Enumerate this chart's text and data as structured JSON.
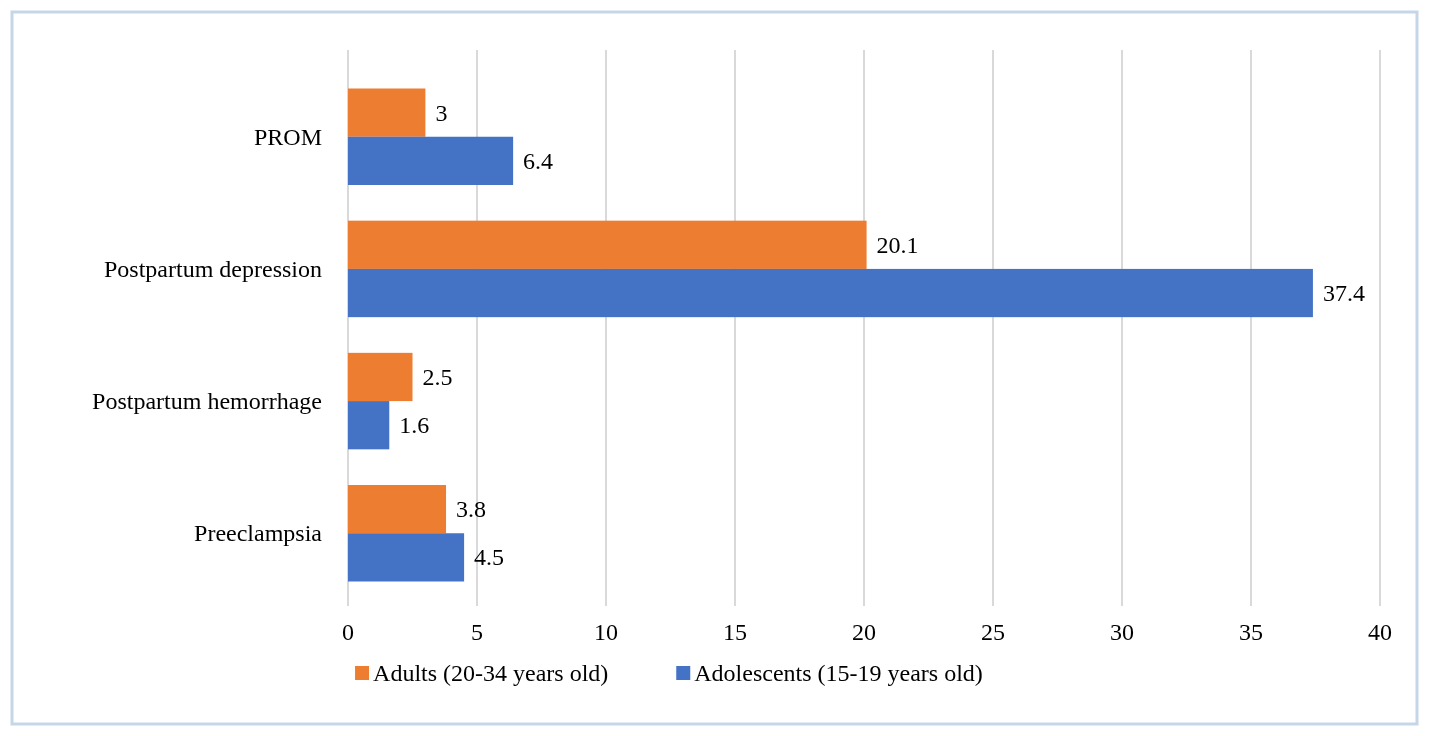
{
  "chart_data": {
    "type": "bar",
    "orientation": "horizontal",
    "categories": [
      "PROM",
      "Postpartum depression",
      "Postpartum hemorrhage",
      "Preeclampsia"
    ],
    "series": [
      {
        "name": "Adults (20-34 years old)",
        "color": "#ed7d31",
        "values": [
          3,
          20.1,
          2.5,
          3.8
        ]
      },
      {
        "name": "Adolescents (15-19 years old)",
        "color": "#4472c4",
        "values": [
          6.4,
          37.4,
          1.6,
          4.5
        ]
      }
    ],
    "xlim": [
      0,
      40
    ],
    "xticks": [
      0,
      5,
      10,
      15,
      20,
      25,
      30,
      35,
      40
    ],
    "grid": "x",
    "legend": "bottom",
    "data_labels": true
  }
}
